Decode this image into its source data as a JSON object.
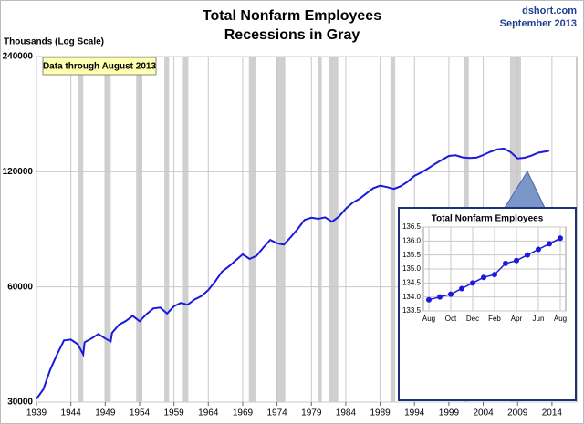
{
  "chart_data": [
    {
      "type": "line",
      "title": "Total Nonfarm Employees",
      "subtitle": "Recessions in Gray",
      "source": "dshort.com",
      "date": "September 2013",
      "ylabel": "Thousands (Log Scale)",
      "annotation": "Data through August 2013",
      "log_scale": true,
      "grid": true,
      "xlim": [
        1939,
        2017.6
      ],
      "xticks": [
        1939,
        1944,
        1949,
        1954,
        1959,
        1964,
        1969,
        1974,
        1979,
        1984,
        1989,
        1994,
        1999,
        2004,
        2009,
        2014
      ],
      "ylim": [
        30000,
        240000
      ],
      "yticks": [
        30000,
        60000,
        120000,
        240000
      ],
      "recession_color": "#d0d0d0",
      "recessions": [
        [
          1945.1,
          1945.8
        ],
        [
          1948.9,
          1949.8
        ],
        [
          1953.5,
          1954.4
        ],
        [
          1957.6,
          1958.3
        ],
        [
          1960.3,
          1961.1
        ],
        [
          1969.9,
          1970.9
        ],
        [
          1973.9,
          1975.2
        ],
        [
          1980.0,
          1980.5
        ],
        [
          1981.5,
          1982.9
        ],
        [
          1990.5,
          1991.2
        ],
        [
          2001.2,
          2001.9
        ],
        [
          2007.9,
          2009.5
        ]
      ],
      "series": [
        {
          "name": "Total Nonfarm Employees",
          "color": "#1a1adc",
          "x": [
            1939,
            1940,
            1941,
            1942,
            1943,
            1944,
            1945,
            1945.8,
            1946,
            1947,
            1948,
            1949,
            1949.8,
            1950,
            1951,
            1952,
            1953,
            1954,
            1955,
            1956,
            1957,
            1958,
            1959,
            1960,
            1961,
            1962,
            1963,
            1964,
            1965,
            1966,
            1967,
            1968,
            1969,
            1970,
            1971,
            1972,
            1973,
            1974,
            1975,
            1976,
            1977,
            1978,
            1979,
            1980,
            1981,
            1982,
            1983,
            1984,
            1985,
            1986,
            1987,
            1988,
            1989,
            1990,
            1991,
            1992,
            1993,
            1994,
            1995,
            1996,
            1997,
            1998,
            1999,
            2000,
            2001,
            2002,
            2003,
            2004,
            2005,
            2006,
            2007,
            2008,
            2009,
            2010,
            2011,
            2012,
            2013.6
          ],
          "values": [
            30600,
            32400,
            36500,
            40000,
            43500,
            43700,
            42500,
            40000,
            43000,
            44000,
            45200,
            44000,
            43200,
            45500,
            47800,
            48900,
            50400,
            48800,
            50900,
            52700,
            53000,
            51100,
            53400,
            54500,
            53900,
            55600,
            56800,
            58900,
            62000,
            65800,
            67900,
            70400,
            73000,
            71000,
            72300,
            76000,
            79600,
            78000,
            77400,
            81000,
            85000,
            89800,
            91000,
            90400,
            91200,
            88800,
            91600,
            96000,
            99600,
            102000,
            105300,
            108700,
            110300,
            109400,
            108200,
            110000,
            113000,
            117000,
            119500,
            122500,
            125800,
            128900,
            132000,
            132500,
            130800,
            130300,
            130600,
            132700,
            135300,
            137200,
            138000,
            135000,
            130000,
            130500,
            132200,
            134500,
            136100
          ]
        }
      ]
    },
    {
      "type": "line",
      "title": "Total Nonfarm Employees",
      "grid": true,
      "categories": [
        "Aug",
        null,
        "Oct",
        null,
        "Dec",
        null,
        "Feb",
        null,
        "Apr",
        null,
        "Jun",
        null,
        "Aug"
      ],
      "ylim": [
        133.5,
        136.5
      ],
      "yticks": [
        133.5,
        {
          "value": 134,
          "label": "134.0"
        },
        134.5,
        {
          "value": 135,
          "label": "135.0"
        },
        135.5,
        {
          "value": 136,
          "label": "136.0"
        },
        136.5
      ],
      "series": [
        {
          "name": "Total Nonfarm Employees",
          "color": "#1a1adc",
          "values": [
            133.9,
            134.0,
            134.1,
            134.3,
            134.5,
            134.7,
            134.8,
            135.2,
            135.3,
            135.5,
            135.7,
            135.9,
            136.1
          ]
        }
      ]
    }
  ]
}
